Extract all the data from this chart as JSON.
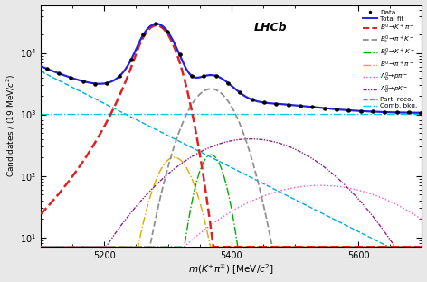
{
  "xmin": 5100,
  "xmax": 5700,
  "ymin": 7,
  "ymax": 60000,
  "xlabel": "$m(K^{\\pm}\\pi^{\\mp})$ [MeV/$c^2$]",
  "ylabel": "Candidates / (19 MeV/$c^{2}$)",
  "lhcb_label": "LHCb",
  "bg_color": "#e8e8e8",
  "plot_bg": "#ffffff",
  "total_fit_color": "#2222dd",
  "B0_Kpi_color": "#dd2222",
  "Bs0_piK_color": "#909090",
  "Bs0_KK_color": "#00aa00",
  "B0_pipi_color": "#ddaa00",
  "Lamb_ppi_color": "#ff55bb",
  "Lamb_pK_color": "#882288",
  "part_reco_color": "#00aadd",
  "comb_bkg_color": "#00ccdd",
  "data_color": "#000000",
  "mu_B0": 5282,
  "sigma_B0": 22,
  "amp_B0": 28000,
  "mu_Bs": 5368,
  "sigma_Bs": 28,
  "amp_Bs": 2600,
  "mu_Bs_KK": 5368,
  "sigma_Bs_KK": 16,
  "amp_Bs_KK": 220,
  "mu_B0_pipi": 5310,
  "sigma_B0_pipi": 22,
  "amp_B0_pipi": 200,
  "mu_Lamb_ppi": 5540,
  "sigma_Lamb_ppi": 100,
  "amp_Lamb_ppi": 70,
  "mu_Lamb_pK": 5430,
  "sigma_Lamb_pK": 80,
  "amp_Lamb_pK": 400,
  "comb_bkg_level": 1000,
  "part_reco_amp": 5000,
  "part_reco_decay": 0.012
}
